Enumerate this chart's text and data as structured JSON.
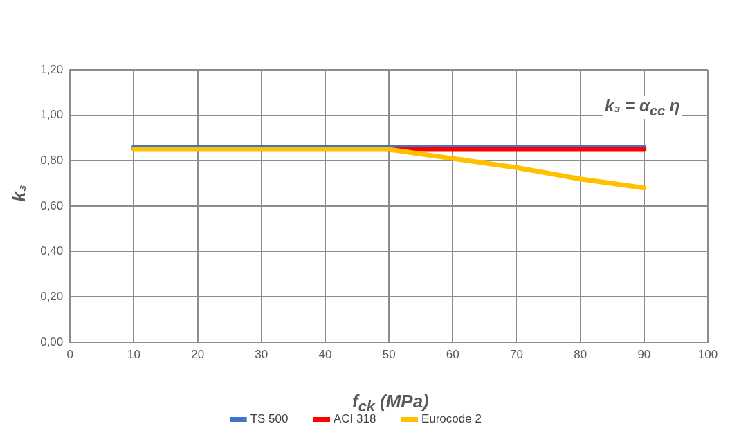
{
  "chart_data": {
    "type": "line",
    "xlabel": "f$_{ck}$ (MPa)",
    "ylabel": "k₃",
    "x": [
      10,
      20,
      30,
      40,
      50,
      60,
      70,
      80,
      90
    ],
    "series": [
      {
        "name": "TS 500",
        "color": "#4472c4",
        "values": [
          0.86,
          0.86,
          0.86,
          0.86,
          0.86,
          0.86,
          0.86,
          0.86,
          0.86
        ]
      },
      {
        "name": "ACI 318",
        "color": "#ff0000",
        "values": [
          null,
          null,
          null,
          null,
          0.85,
          0.85,
          0.85,
          0.85,
          0.85
        ]
      },
      {
        "name": "Eurocode 2",
        "color": "#ffc000",
        "values": [
          0.85,
          0.85,
          0.85,
          0.85,
          0.85,
          0.81,
          0.77,
          0.72,
          0.68
        ]
      }
    ],
    "xlim": [
      0,
      100
    ],
    "xticks": [
      0,
      10,
      20,
      30,
      40,
      50,
      60,
      70,
      80,
      90,
      100
    ],
    "ylim": [
      0,
      1.2
    ],
    "yticks": [
      {
        "value": 0,
        "label": "0,00"
      },
      {
        "value": 0.2,
        "label": "0,20"
      },
      {
        "value": 0.4,
        "label": "0,40"
      },
      {
        "value": 0.6,
        "label": "0,60"
      },
      {
        "value": 0.8,
        "label": "0,80"
      },
      {
        "value": 1,
        "label": "1,00"
      },
      {
        "value": 1.2,
        "label": "1,20"
      }
    ],
    "annotations": [
      "k₃ = α$_{cc}$ η"
    ],
    "grid": true,
    "legend": "bottom",
    "marker": "none",
    "line_style": "solid"
  }
}
